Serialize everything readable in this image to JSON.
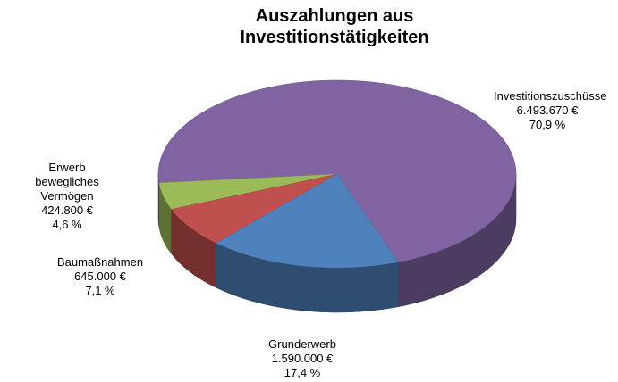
{
  "chart_data": {
    "type": "pie3d",
    "title": "Auszahlungen aus Investitionstätigkeiten",
    "categories": [
      "Investitionszuschüsse",
      "Erwerb bewegliches Vermögen",
      "Baumaßnahmen",
      "Grunderwerb"
    ],
    "values": [
      6493670,
      424800,
      645000,
      1590000
    ],
    "value_labels": [
      "6.493.670 €",
      "424.800 €",
      "645.000 €",
      "1.590.000 €"
    ],
    "shares": [
      70.9,
      4.6,
      7.1,
      17.4
    ],
    "share_labels": [
      "70,9 %",
      "4,6 %",
      "7,1 %",
      "17,4 %"
    ],
    "colors": [
      "#8064a2",
      "#9bbb59",
      "#c0504d",
      "#4f81bd"
    ]
  }
}
